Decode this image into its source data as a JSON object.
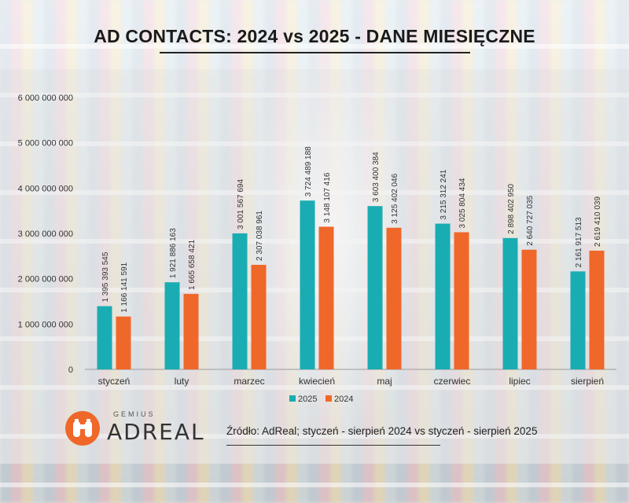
{
  "title": "AD CONTACTS: 2024 vs 2025 - DANE MIESIĘCZNE",
  "source": "Źródło: AdReal; styczeń - sierpień 2024 vs styczeń - sierpień 2025",
  "logo": {
    "top": "GEMIUS",
    "brand": "ADREAL",
    "icon": "binoculars-icon"
  },
  "colors": {
    "series_2025": "#1aacb3",
    "series_2024": "#f0672a",
    "accent": "#f0672a"
  },
  "chart_data": {
    "type": "bar",
    "categories": [
      "styczeń",
      "luty",
      "marzec",
      "kwiecień",
      "maj",
      "czerwiec",
      "lipiec",
      "sierpień"
    ],
    "series": [
      {
        "name": "2025",
        "color": "#1aacb3",
        "values": [
          1395393545,
          1921886163,
          3001567694,
          3724489188,
          3603400384,
          3215312241,
          2898402950,
          2161917513
        ],
        "labels": [
          "1 395 393 545",
          "1 921 886 163",
          "3 001 567 694",
          "3 724 489 188",
          "3 603 400 384",
          "3 215 312 241",
          "2 898 402 950",
          "2 161 917 513"
        ]
      },
      {
        "name": "2024",
        "color": "#f0672a",
        "values": [
          1166141591,
          1665658421,
          2307038961,
          3148107416,
          3125402046,
          3025804434,
          2640727035,
          2619410039
        ],
        "labels": [
          "1 166 141 591",
          "1 665 658 421",
          "2 307 038 961",
          "3 148 107 416",
          "3 125 402 046",
          "3 025 804 434",
          "2 640 727 035",
          "2 619 410 039"
        ]
      }
    ],
    "yticks": [
      0,
      1000000000,
      2000000000,
      3000000000,
      4000000000,
      5000000000,
      6000000000
    ],
    "ytick_labels": [
      "0",
      "1 000 000 000",
      "2 000 000 000",
      "3 000 000 000",
      "4 000 000 000",
      "5 000 000 000",
      "6 000 000 000"
    ],
    "ylim": [
      0,
      6000000000
    ],
    "grid": false,
    "legend": "bottom-center"
  }
}
